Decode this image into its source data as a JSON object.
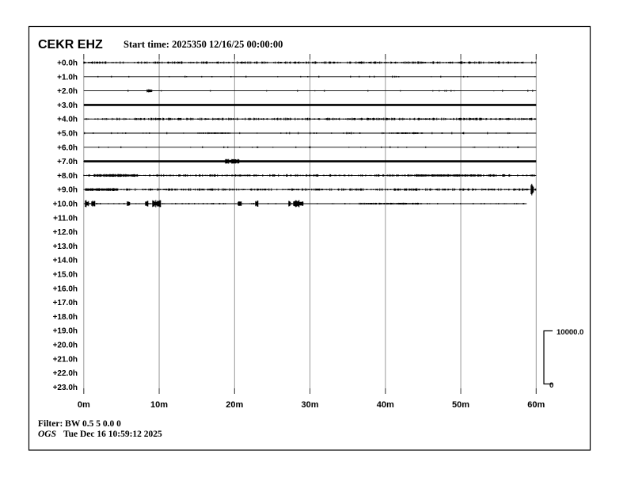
{
  "header": {
    "station": "CEKR EHZ",
    "start_time": "Start time: 2025350 12/16/25 00:00:00"
  },
  "footer": {
    "filter_label": "Filter: BW 0.5 5 0.0 0",
    "agency": "OGS",
    "timestamp": "Tue Dec 16 10:59:12 2025"
  },
  "scale_bar": {
    "max_label": "10000.0",
    "min_label": "0"
  },
  "colors": {
    "background": "#ffffff",
    "trace": "#000000",
    "grid": "#999999",
    "grid_cap": "#444444",
    "text": "#000000"
  },
  "chart_data": {
    "type": "line",
    "title": "CEKR EHZ",
    "subtitle": "Start time: 2025350 12/16/25 00:00:00",
    "xlabel_ticks": [
      "0m",
      "10m",
      "20m",
      "30m",
      "40m",
      "50m",
      "60m"
    ],
    "x_range_minutes": [
      0,
      60
    ],
    "grid": true,
    "row_spacing_hours": 1.0,
    "amplitude_scale": {
      "max": 10000.0,
      "min": 0
    },
    "rows": [
      {
        "label": "+0.0h",
        "base": "noisy",
        "end_min": 60,
        "events": []
      },
      {
        "label": "+1.0h",
        "base": "quiet",
        "end_min": 60,
        "events": []
      },
      {
        "label": "+2.0h",
        "base": "quiet",
        "end_min": 60,
        "events": [
          {
            "start_min": 8.3,
            "end_min": 9.1,
            "amp": 2.0
          }
        ]
      },
      {
        "label": "+3.0h",
        "base": "saturated",
        "end_min": 60,
        "events": []
      },
      {
        "label": "+4.0h",
        "base": "noisy",
        "end_min": 60,
        "events": []
      },
      {
        "label": "+5.0h",
        "base": "quiet2",
        "end_min": 60,
        "events": [
          {
            "start_min": 15.0,
            "end_min": 19.5,
            "amp": 1.0
          },
          {
            "start_min": 40.5,
            "end_min": 45.0,
            "amp": 1.0
          }
        ]
      },
      {
        "label": "+6.0h",
        "base": "quiet",
        "end_min": 60,
        "events": []
      },
      {
        "label": "+7.0h",
        "base": "saturated",
        "end_min": 60,
        "events": [
          {
            "start_min": 18.7,
            "end_min": 20.6,
            "amp": 3.0
          }
        ]
      },
      {
        "label": "+8.0h",
        "base": "noisy",
        "end_min": 60,
        "events": [
          {
            "start_min": 1.3,
            "end_min": 7.0,
            "amp": 1.8
          },
          {
            "start_min": 44.0,
            "end_min": 52.0,
            "amp": 1.4
          }
        ]
      },
      {
        "label": "+9.0h",
        "base": "noisy",
        "end_min": 60,
        "events": [
          {
            "start_min": 0.2,
            "end_min": 4.6,
            "amp": 1.8
          },
          {
            "start_min": 59.3,
            "end_min": 59.7,
            "amp": 8.0
          }
        ]
      },
      {
        "label": "+10.0h",
        "base": "veryquiet",
        "end_min": 58.7,
        "events": [
          {
            "start_min": 0.2,
            "end_min": 0.7,
            "amp": 4.5
          },
          {
            "start_min": 1.0,
            "end_min": 1.5,
            "amp": 4.5
          },
          {
            "start_min": 5.7,
            "end_min": 6.1,
            "amp": 4.0
          },
          {
            "start_min": 8.1,
            "end_min": 8.6,
            "amp": 4.0
          },
          {
            "start_min": 9.1,
            "end_min": 10.2,
            "amp": 4.5
          },
          {
            "start_min": 20.4,
            "end_min": 20.9,
            "amp": 4.0
          },
          {
            "start_min": 22.7,
            "end_min": 23.2,
            "amp": 4.0
          },
          {
            "start_min": 27.1,
            "end_min": 27.5,
            "amp": 3.5
          },
          {
            "start_min": 27.8,
            "end_min": 29.1,
            "amp": 4.5
          },
          {
            "start_min": 36.5,
            "end_min": 44.5,
            "amp": 1.2
          }
        ]
      },
      {
        "label": "+11.0h",
        "base": "none",
        "end_min": 0,
        "events": []
      },
      {
        "label": "+12.0h",
        "base": "none",
        "end_min": 0,
        "events": []
      },
      {
        "label": "+13.0h",
        "base": "none",
        "end_min": 0,
        "events": []
      },
      {
        "label": "+14.0h",
        "base": "none",
        "end_min": 0,
        "events": []
      },
      {
        "label": "+15.0h",
        "base": "none",
        "end_min": 0,
        "events": []
      },
      {
        "label": "+16.0h",
        "base": "none",
        "end_min": 0,
        "events": []
      },
      {
        "label": "+17.0h",
        "base": "none",
        "end_min": 0,
        "events": []
      },
      {
        "label": "+18.0h",
        "base": "none",
        "end_min": 0,
        "events": []
      },
      {
        "label": "+19.0h",
        "base": "none",
        "end_min": 0,
        "events": []
      },
      {
        "label": "+20.0h",
        "base": "none",
        "end_min": 0,
        "events": []
      },
      {
        "label": "+21.0h",
        "base": "none",
        "end_min": 0,
        "events": []
      },
      {
        "label": "+22.0h",
        "base": "none",
        "end_min": 0,
        "events": []
      },
      {
        "label": "+23.0h",
        "base": "none",
        "end_min": 0,
        "events": []
      }
    ]
  }
}
